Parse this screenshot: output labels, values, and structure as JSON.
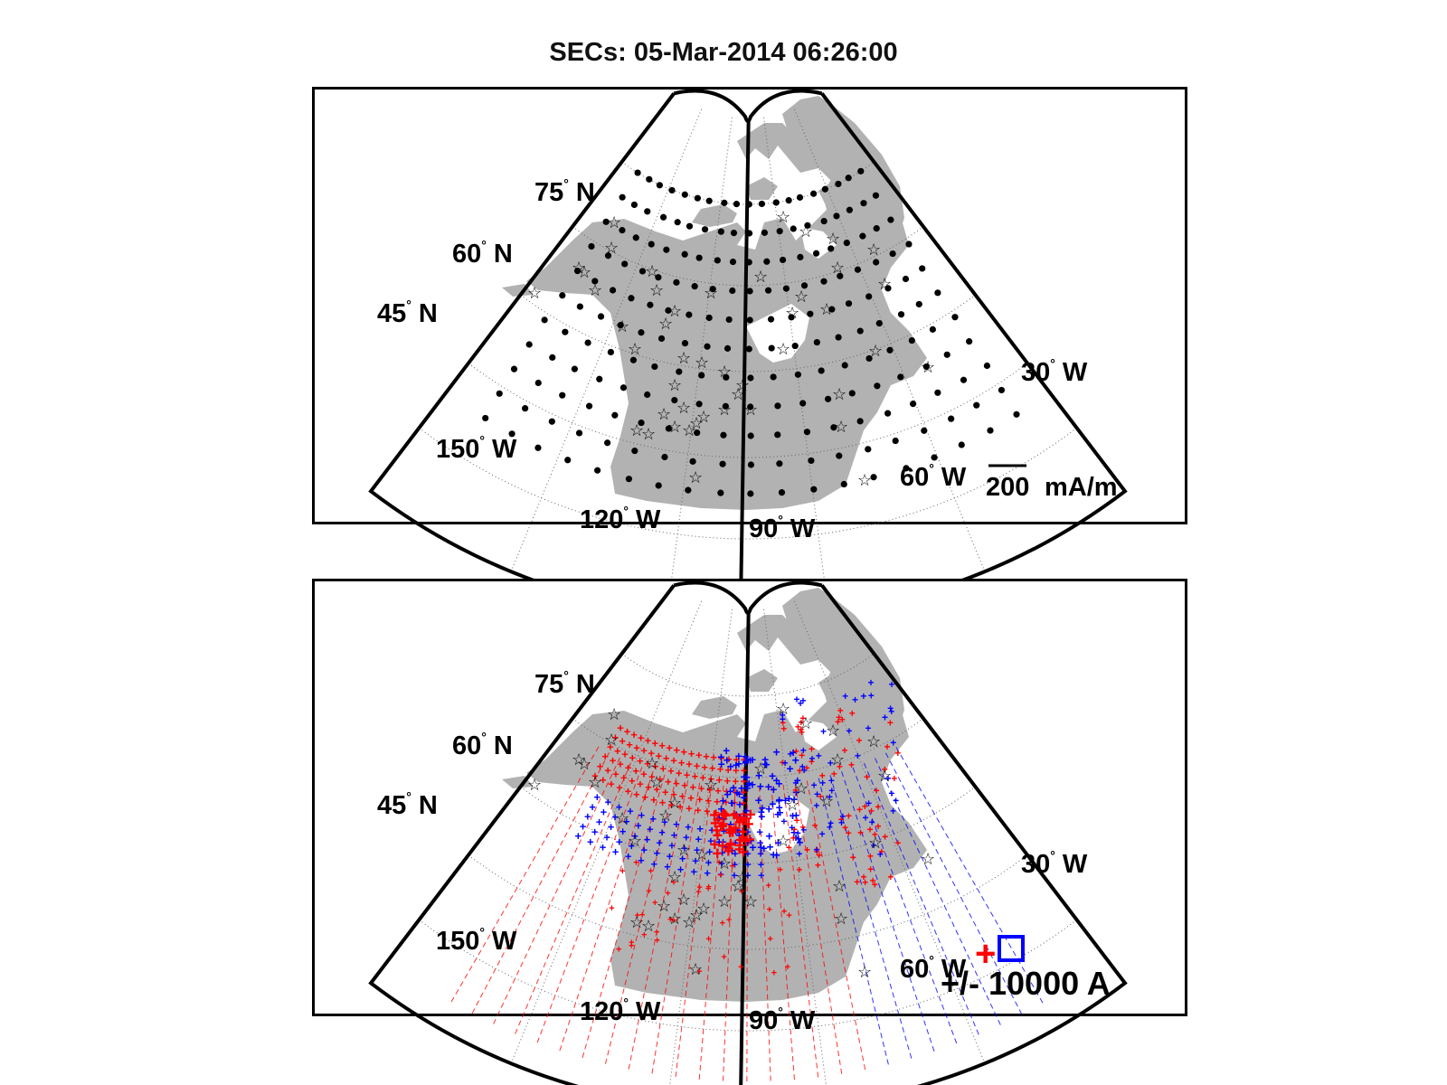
{
  "figure": {
    "title": "SECs: 05-Mar-2014 06:26:00"
  },
  "map": {
    "projection": "conic sector, North America",
    "land_color": "#b2b2b2",
    "outline_color": "#000000",
    "grid_style": "dotted",
    "lat_labels": [
      "75",
      "60",
      "45"
    ],
    "lat_suffix": "N",
    "lon_labels": [
      "150",
      "120",
      "90",
      "60",
      "30"
    ],
    "lon_suffix": "W",
    "degree_mark": "°"
  },
  "top_panel": {
    "scale_value": "200",
    "scale_unit": "mA/m",
    "station_marker": "☆",
    "point_marker": "dot"
  },
  "bottom_panel": {
    "legend_text": "+/- 10000 A",
    "positive_color": "#ff0000",
    "negative_color": "#0000ff",
    "positive_marker": "+",
    "negative_marker": "square"
  }
}
